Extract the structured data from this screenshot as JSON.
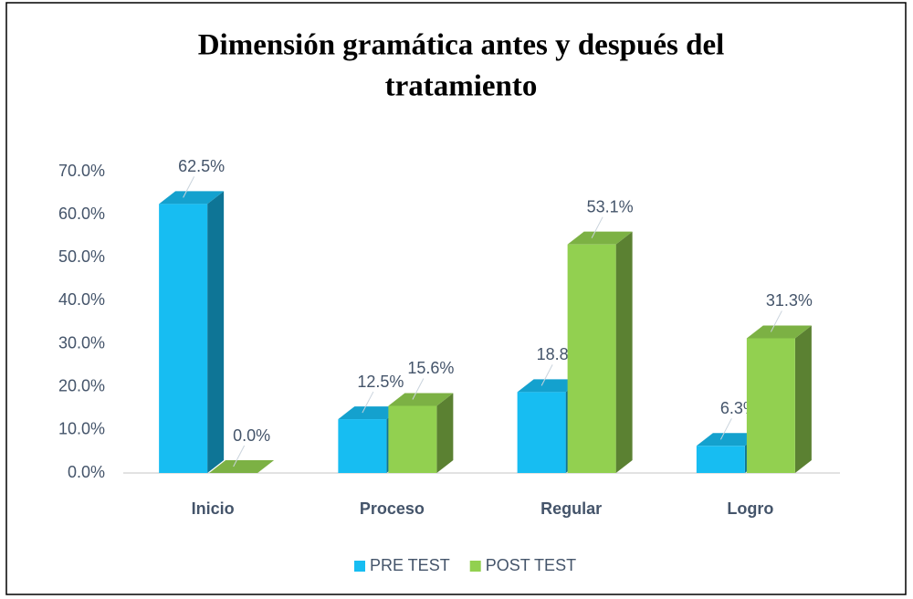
{
  "chart_data": {
    "type": "bar3d",
    "title": [
      "Dimensión gramática antes y después del",
      "tratamiento"
    ],
    "categories": [
      "Inicio",
      "Proceso",
      "Regular",
      "Logro"
    ],
    "series": [
      {
        "name": "PRE TEST",
        "color": "#17bdf2",
        "values": [
          62.5,
          12.5,
          18.8,
          6.3
        ],
        "value_labels": [
          "62.5%",
          "12.5%",
          "18.8%",
          "6.3%"
        ]
      },
      {
        "name": "POST TEST",
        "color": "#92d050",
        "values": [
          0.0,
          15.6,
          53.1,
          31.3
        ],
        "value_labels": [
          "0.0%",
          "15.6%",
          "53.1%",
          "31.3%"
        ]
      }
    ],
    "ylim": [
      0,
      70
    ],
    "yticks": [
      {
        "value": 0,
        "label": "0.0%"
      },
      {
        "value": 10,
        "label": "10.0%"
      },
      {
        "value": 20,
        "label": "20.0%"
      },
      {
        "value": 30,
        "label": "30.0%"
      },
      {
        "value": 40,
        "label": "40.0%"
      },
      {
        "value": 50,
        "label": "50.0%"
      },
      {
        "value": 60,
        "label": "60.0%"
      },
      {
        "value": 70,
        "label": "70.0%"
      }
    ],
    "legend": "bottom"
  }
}
